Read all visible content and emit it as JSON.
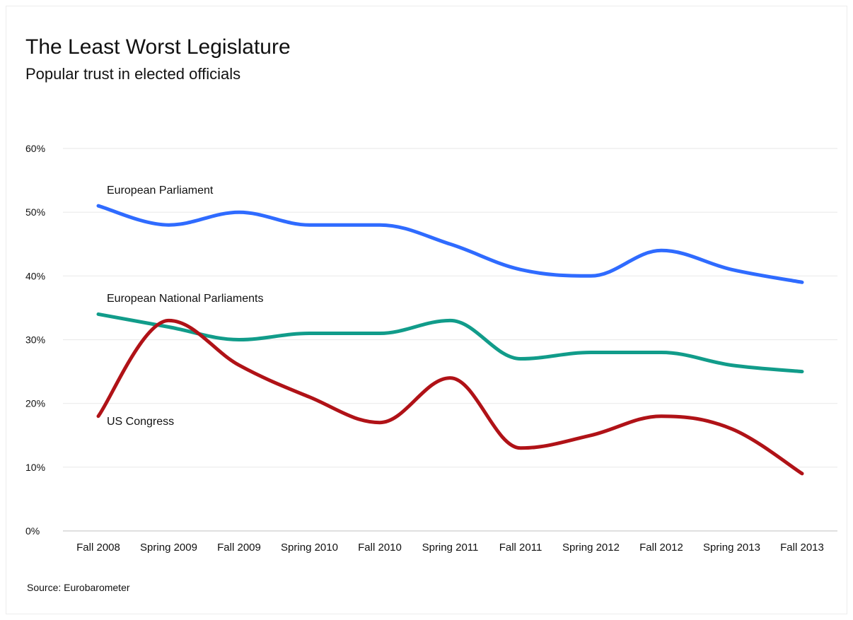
{
  "chart_data": {
    "type": "line",
    "title": "The Least Worst Legislature",
    "subtitle": "Popular trust in elected officials",
    "source": "Source: Eurobarometer",
    "x": [
      "Fall 2008",
      "Spring 2009",
      "Fall 2009",
      "Spring 2010",
      "Fall 2010",
      "Spring 2011",
      "Fall 2011",
      "Spring 2012",
      "Fall 2012",
      "Spring 2013",
      "Fall 2013"
    ],
    "ylim": [
      0,
      60
    ],
    "yticks": [
      0,
      10,
      20,
      30,
      40,
      50,
      60
    ],
    "ytick_labels": [
      "0%",
      "10%",
      "20%",
      "30%",
      "40%",
      "50%",
      "60%"
    ],
    "grid": true,
    "legend": "inline labels",
    "series": [
      {
        "name": "European Parliament",
        "color": "#2f6bff",
        "values": [
          51,
          48,
          50,
          48,
          48,
          45,
          41,
          40,
          44,
          41,
          39
        ]
      },
      {
        "name": "European National Parliaments",
        "color": "#119c8a",
        "values": [
          34,
          32,
          30,
          31,
          31,
          33,
          27,
          28,
          28,
          26,
          25
        ]
      },
      {
        "name": "US Congress",
        "color": "#b01217",
        "values": [
          18,
          33,
          26,
          21,
          17,
          24,
          13,
          15,
          18,
          16,
          9
        ]
      }
    ]
  }
}
